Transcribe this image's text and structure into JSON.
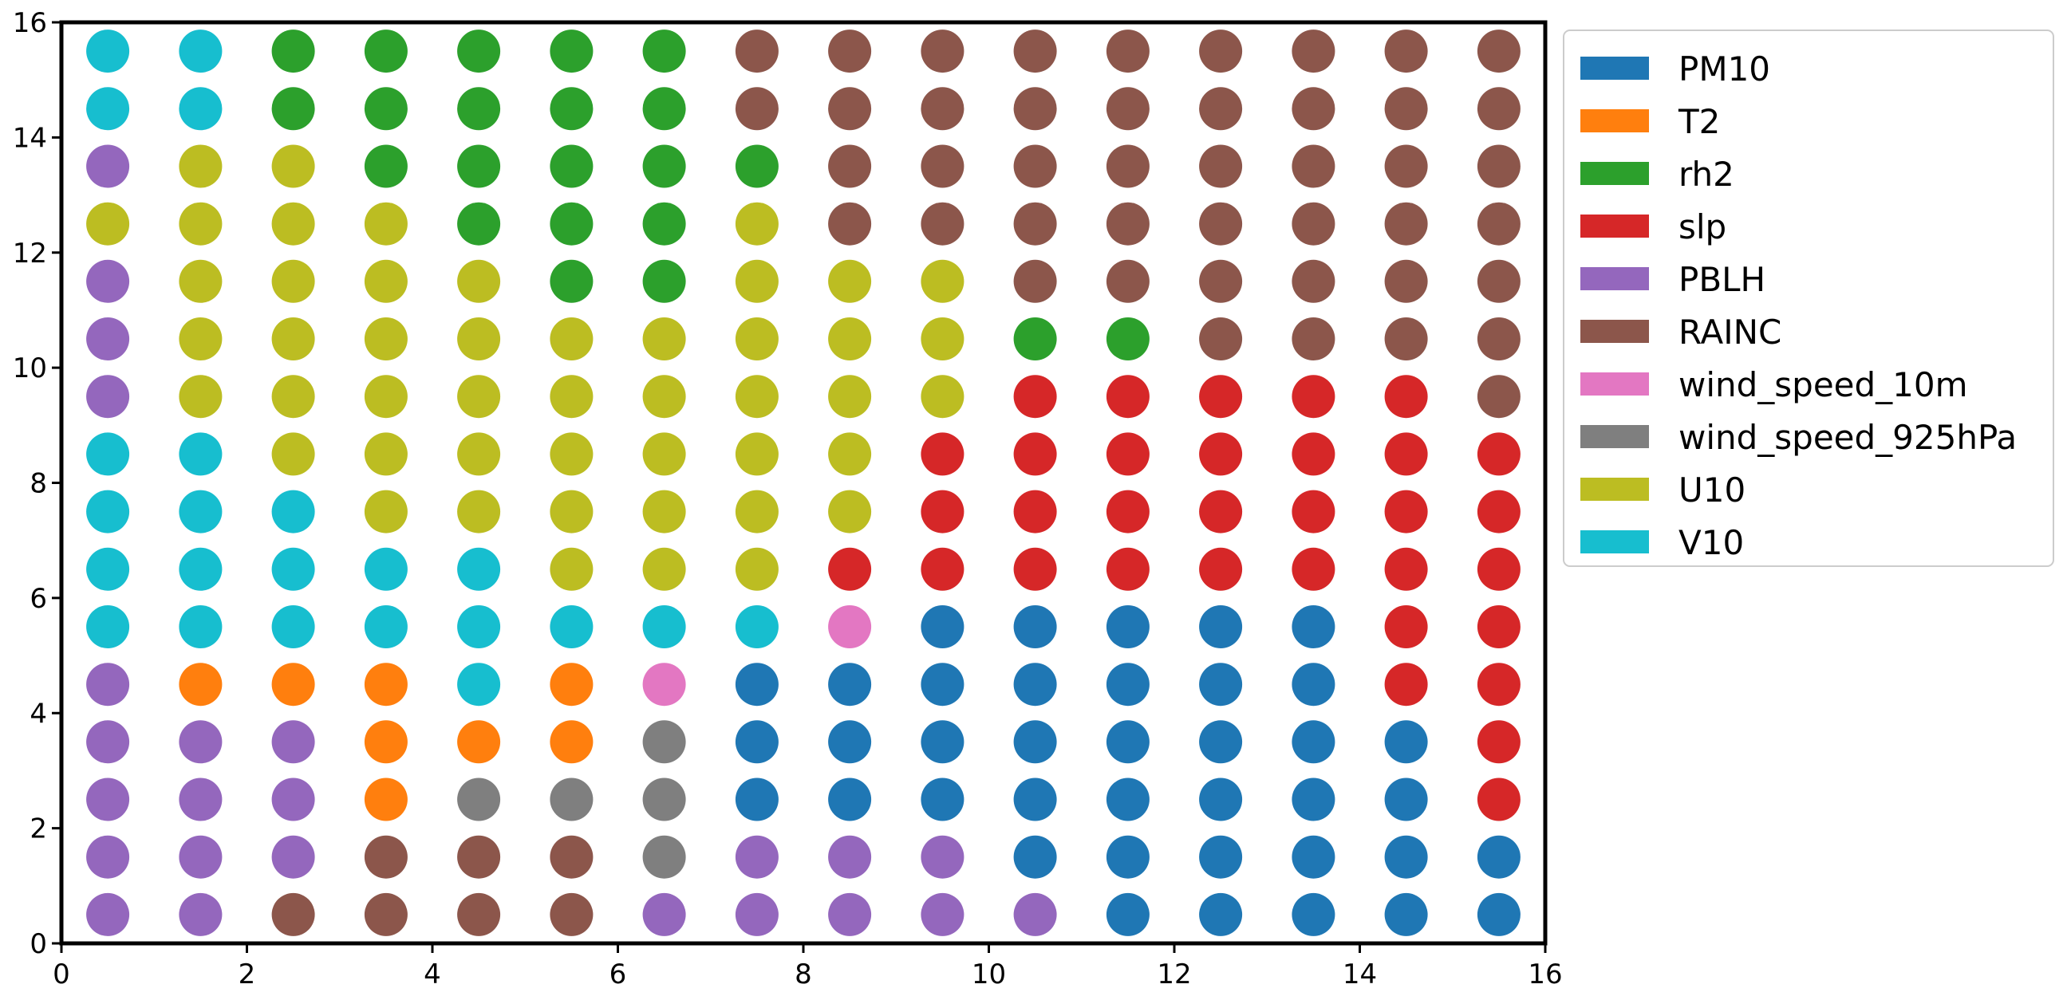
{
  "chart_data": {
    "type": "scatter",
    "title": "",
    "xlabel": "",
    "ylabel": "",
    "xlim": [
      0,
      16
    ],
    "ylim": [
      0,
      16
    ],
    "xticks": [
      0,
      2,
      4,
      6,
      8,
      10,
      12,
      14,
      16
    ],
    "yticks": [
      0,
      2,
      4,
      6,
      8,
      10,
      12,
      14,
      16
    ],
    "grid": false,
    "legend_position": "outside upper right",
    "categories": [
      {
        "key": "PM10",
        "name": "PM10",
        "color": "#1f77b4"
      },
      {
        "key": "T2",
        "name": "T2",
        "color": "#ff7f0e"
      },
      {
        "key": "rh2",
        "name": "rh2",
        "color": "#2ca02c"
      },
      {
        "key": "slp",
        "name": "slp",
        "color": "#d62728"
      },
      {
        "key": "PBLH",
        "name": "PBLH",
        "color": "#9467bd"
      },
      {
        "key": "RAINC",
        "name": "RAINC",
        "color": "#8c564b"
      },
      {
        "key": "wind_speed_10m",
        "name": "wind_speed_10m",
        "color": "#e377c2"
      },
      {
        "key": "wind_speed_925hPa",
        "name": "wind_speed_925hPa",
        "color": "#7f7f7f"
      },
      {
        "key": "U10",
        "name": "U10",
        "color": "#bcbd22"
      },
      {
        "key": "V10",
        "name": "V10",
        "color": "#17becf"
      }
    ],
    "x_centers": [
      0.5,
      1.5,
      2.5,
      3.5,
      4.5,
      5.5,
      6.5,
      7.5,
      8.5,
      9.5,
      10.5,
      11.5,
      12.5,
      13.5,
      14.5,
      15.5
    ],
    "y_centers_top_to_bottom": [
      15.5,
      14.5,
      13.5,
      12.5,
      11.5,
      10.5,
      9.5,
      8.5,
      7.5,
      6.5,
      5.5,
      4.5,
      3.5,
      2.5,
      1.5,
      0.5
    ],
    "grid_labels_top_to_bottom": [
      [
        "V10",
        "V10",
        "rh2",
        "rh2",
        "rh2",
        "rh2",
        "rh2",
        "RAINC",
        "RAINC",
        "RAINC",
        "RAINC",
        "RAINC",
        "RAINC",
        "RAINC",
        "RAINC",
        "RAINC"
      ],
      [
        "V10",
        "V10",
        "rh2",
        "rh2",
        "rh2",
        "rh2",
        "rh2",
        "RAINC",
        "RAINC",
        "RAINC",
        "RAINC",
        "RAINC",
        "RAINC",
        "RAINC",
        "RAINC",
        "RAINC"
      ],
      [
        "PBLH",
        "U10",
        "U10",
        "rh2",
        "rh2",
        "rh2",
        "rh2",
        "rh2",
        "RAINC",
        "RAINC",
        "RAINC",
        "RAINC",
        "RAINC",
        "RAINC",
        "RAINC",
        "RAINC"
      ],
      [
        "U10",
        "U10",
        "U10",
        "U10",
        "rh2",
        "rh2",
        "rh2",
        "U10",
        "RAINC",
        "RAINC",
        "RAINC",
        "RAINC",
        "RAINC",
        "RAINC",
        "RAINC",
        "RAINC"
      ],
      [
        "PBLH",
        "U10",
        "U10",
        "U10",
        "U10",
        "rh2",
        "rh2",
        "U10",
        "U10",
        "U10",
        "RAINC",
        "RAINC",
        "RAINC",
        "RAINC",
        "RAINC",
        "RAINC"
      ],
      [
        "PBLH",
        "U10",
        "U10",
        "U10",
        "U10",
        "U10",
        "U10",
        "U10",
        "U10",
        "U10",
        "rh2",
        "rh2",
        "RAINC",
        "RAINC",
        "RAINC",
        "RAINC"
      ],
      [
        "PBLH",
        "U10",
        "U10",
        "U10",
        "U10",
        "U10",
        "U10",
        "U10",
        "U10",
        "U10",
        "slp",
        "slp",
        "slp",
        "slp",
        "slp",
        "RAINC"
      ],
      [
        "V10",
        "V10",
        "U10",
        "U10",
        "U10",
        "U10",
        "U10",
        "U10",
        "U10",
        "slp",
        "slp",
        "slp",
        "slp",
        "slp",
        "slp",
        "slp"
      ],
      [
        "V10",
        "V10",
        "V10",
        "U10",
        "U10",
        "U10",
        "U10",
        "U10",
        "U10",
        "slp",
        "slp",
        "slp",
        "slp",
        "slp",
        "slp",
        "slp"
      ],
      [
        "V10",
        "V10",
        "V10",
        "V10",
        "V10",
        "U10",
        "U10",
        "U10",
        "slp",
        "slp",
        "slp",
        "slp",
        "slp",
        "slp",
        "slp",
        "slp"
      ],
      [
        "V10",
        "V10",
        "V10",
        "V10",
        "V10",
        "V10",
        "V10",
        "V10",
        "wind_speed_10m",
        "PM10",
        "PM10",
        "PM10",
        "PM10",
        "PM10",
        "slp",
        "slp"
      ],
      [
        "PBLH",
        "T2",
        "T2",
        "T2",
        "V10",
        "T2",
        "wind_speed_10m",
        "PM10",
        "PM10",
        "PM10",
        "PM10",
        "PM10",
        "PM10",
        "PM10",
        "slp",
        "slp"
      ],
      [
        "PBLH",
        "PBLH",
        "PBLH",
        "T2",
        "T2",
        "T2",
        "wind_speed_925hPa",
        "PM10",
        "PM10",
        "PM10",
        "PM10",
        "PM10",
        "PM10",
        "PM10",
        "PM10",
        "slp"
      ],
      [
        "PBLH",
        "PBLH",
        "PBLH",
        "T2",
        "wind_speed_925hPa",
        "wind_speed_925hPa",
        "wind_speed_925hPa",
        "PM10",
        "PM10",
        "PM10",
        "PM10",
        "PM10",
        "PM10",
        "PM10",
        "PM10",
        "slp"
      ],
      [
        "PBLH",
        "PBLH",
        "PBLH",
        "RAINC",
        "RAINC",
        "RAINC",
        "wind_speed_925hPa",
        "PBLH",
        "PBLH",
        "PBLH",
        "PM10",
        "PM10",
        "PM10",
        "PM10",
        "PM10",
        "PM10"
      ],
      [
        "PBLH",
        "PBLH",
        "RAINC",
        "RAINC",
        "RAINC",
        "RAINC",
        "PBLH",
        "PBLH",
        "PBLH",
        "PBLH",
        "PBLH",
        "PM10",
        "PM10",
        "PM10",
        "PM10",
        "PM10"
      ]
    ]
  }
}
